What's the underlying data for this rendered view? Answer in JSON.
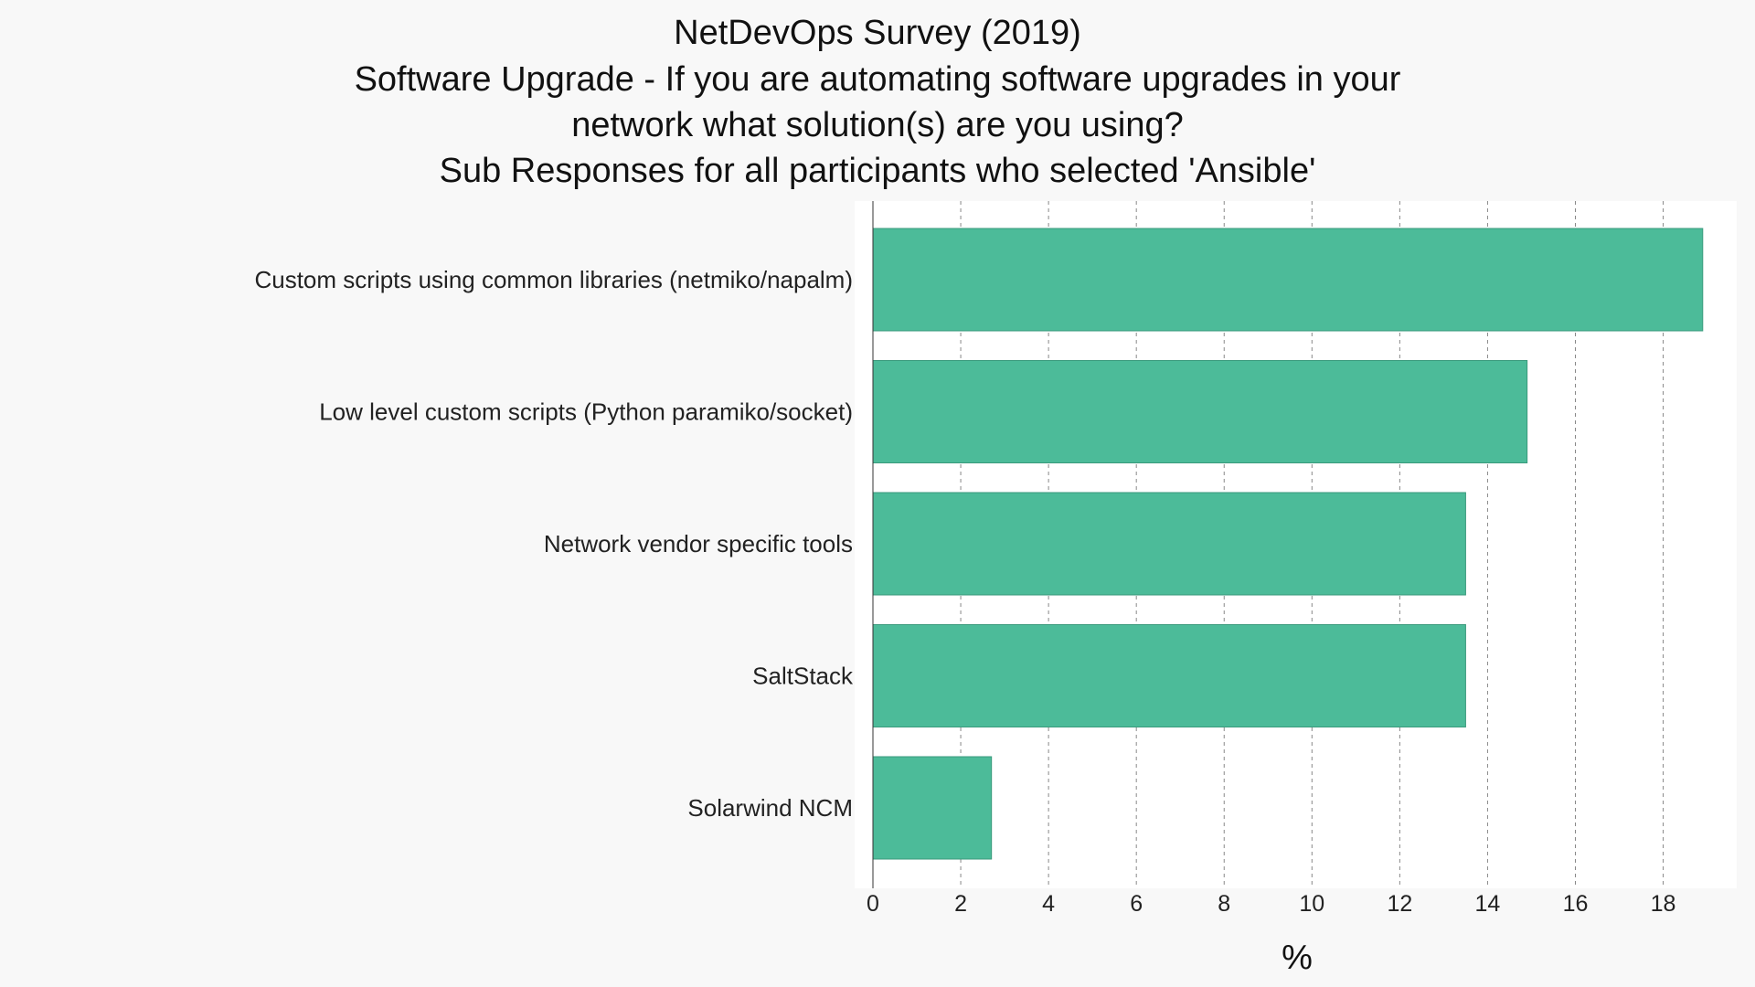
{
  "chart_data": {
    "type": "bar",
    "orientation": "horizontal",
    "title_lines": [
      "NetDevOps Survey (2019)",
      "Software Upgrade - If you are automating software upgrades in your",
      "network what solution(s) are you using?",
      "Sub Responses for all participants who selected 'Ansible'"
    ],
    "categories": [
      "Custom scripts using common libraries (netmiko/napalm)",
      "Low level custom scripts (Python paramiko/socket)",
      "Network vendor specific tools",
      "SaltStack",
      "Solarwind NCM"
    ],
    "values": [
      18.9,
      14.9,
      13.5,
      13.5,
      2.7
    ],
    "xlabel": "%",
    "ylabel": "",
    "xlim": [
      0,
      19.3
    ],
    "xticks": [
      0,
      2,
      4,
      6,
      8,
      10,
      12,
      14,
      16,
      18
    ],
    "grid": true,
    "bar_color": "#4cbb99",
    "bar_edge_color": "#3a9a7c",
    "plot_background": "#ffffff",
    "page_background": "#f8f8f8"
  }
}
